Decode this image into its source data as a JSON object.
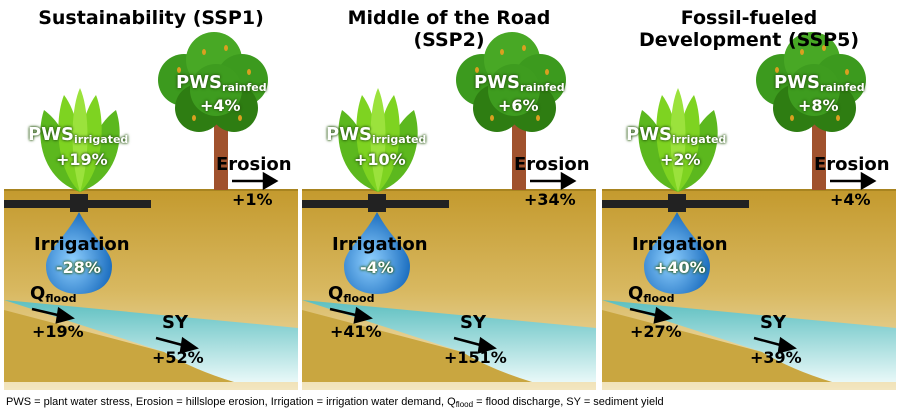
{
  "panels": [
    {
      "title_line1": "Sustainability (SSP1)",
      "title_line2": "",
      "pws_rainfed": "+4%",
      "pws_irrigated": "+19%",
      "erosion": "+1%",
      "irrigation": "-28%",
      "qflood": "+19%",
      "sy": "+52%"
    },
    {
      "title_line1": "Middle of the Road",
      "title_line2": "(SSP2)",
      "pws_rainfed": "+6%",
      "pws_irrigated": "+10%",
      "erosion": "+34%",
      "irrigation": "-4%",
      "qflood": "+41%",
      "sy": "+151%"
    },
    {
      "title_line1": "Fossil-fueled",
      "title_line2": "Development (SSP5)",
      "pws_rainfed": "+8%",
      "pws_irrigated": "+2%",
      "erosion": "+4%",
      "irrigation": "+40%",
      "qflood": "+27%",
      "sy": "+39%"
    }
  ],
  "labels": {
    "pws": "PWS",
    "rainfed": "rainfed",
    "irrigated": "irrigated",
    "erosion": "Erosion",
    "irrigation": "Irrigation",
    "q": "Q",
    "flood": "flood",
    "sy": "SY"
  },
  "footnote": {
    "part1": "PWS = plant water stress, Erosion = hillslope erosion, Irrigation = irrigation water demand, Q",
    "sub": "flood",
    "part2": " = flood discharge, SY = sediment yield"
  },
  "colors": {
    "soil": "#c9a640",
    "water": "#7ccfcf",
    "tree_trunk": "#a0522d",
    "tree_foliage": "#3c9a1e",
    "plant": "#7ed321",
    "drop": "#2d8fd6",
    "pipe": "#222222"
  }
}
